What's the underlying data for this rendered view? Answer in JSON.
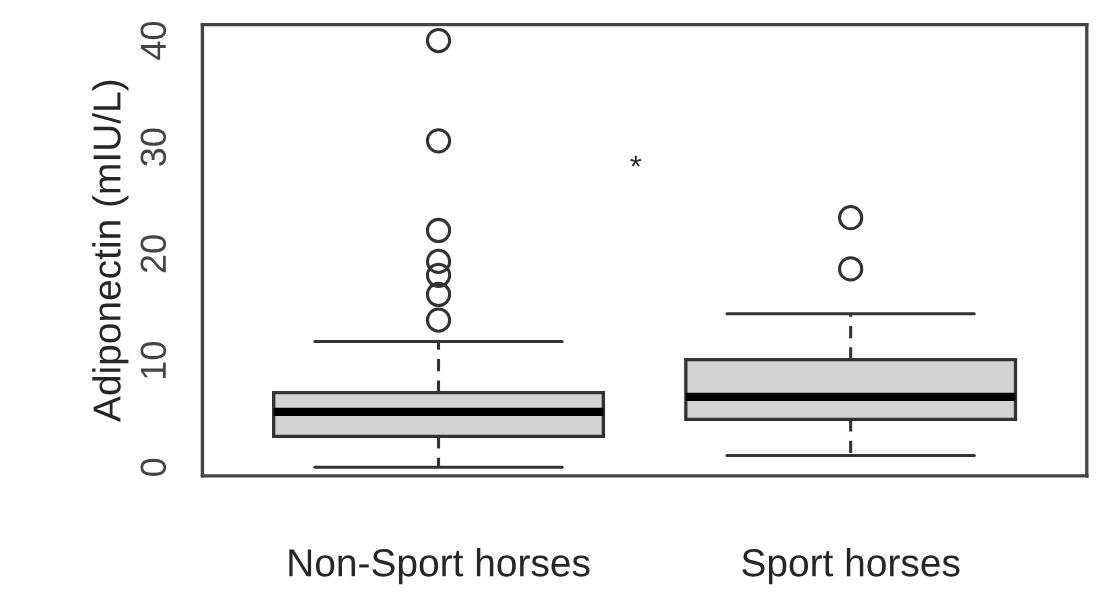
{
  "chart_data": {
    "type": "box",
    "ylabel": "Adiponectin (mIU/L)",
    "categories": [
      "Non-Sport horses",
      "Sport horses"
    ],
    "boxes": [
      {
        "low": 0,
        "q1": 2.9,
        "median": 5.2,
        "q3": 7.0,
        "high": 11.8,
        "outliers": [
          13.8,
          16.2,
          18.0,
          19.3,
          22.2,
          30.6,
          40
        ]
      },
      {
        "low": 1.1,
        "q1": 4.5,
        "median": 6.6,
        "q3": 10.1,
        "high": 14.4,
        "outliers": [
          18.6,
          23.4
        ]
      }
    ],
    "color": "#d3d3d3",
    "ylim": [
      -0.8,
      41.5
    ],
    "yticks": [
      0,
      10,
      20,
      30,
      40
    ],
    "grid": false,
    "annotations": [
      "*"
    ]
  }
}
